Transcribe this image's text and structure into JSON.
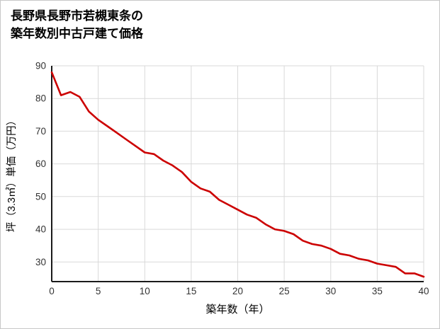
{
  "page": {
    "background": "#ffffff",
    "border_color": "#c8c8c8"
  },
  "title": {
    "line1": "長野県長野市若槻東条の",
    "line2": "築年数別中古戸建て価格"
  },
  "chart_data": {
    "type": "line",
    "title": "長野県長野市若槻東条の築年数別中古戸建て価格",
    "xlabel": "築年数（年）",
    "ylabel": "坪（3.3㎡）単価（万円）",
    "x": [
      0,
      1,
      2,
      3,
      4,
      5,
      6,
      7,
      8,
      9,
      10,
      11,
      12,
      13,
      14,
      15,
      16,
      17,
      18,
      19,
      20,
      21,
      22,
      23,
      24,
      25,
      26,
      27,
      28,
      29,
      30,
      31,
      32,
      33,
      34,
      35,
      36,
      37,
      38,
      39,
      40
    ],
    "values": [
      88,
      81,
      82,
      80.5,
      76,
      73.5,
      71.5,
      69.5,
      67.5,
      65.5,
      63.5,
      63,
      61,
      59.5,
      57.5,
      54.5,
      52.5,
      51.5,
      49,
      47.5,
      46,
      44.5,
      43.5,
      41.5,
      40,
      39.5,
      38.5,
      36.5,
      35.5,
      35,
      34,
      32.5,
      32,
      31,
      30.5,
      29.5,
      29,
      28.5,
      26.5,
      26.5,
      25.5
    ],
    "xlim": [
      0,
      40
    ],
    "ylim": [
      24,
      90
    ],
    "x_ticks": [
      0,
      5,
      10,
      15,
      20,
      25,
      30,
      35,
      40
    ],
    "y_ticks": [
      30,
      40,
      50,
      60,
      70,
      80,
      90
    ],
    "grid": true,
    "legend": "none",
    "line_color": "#cc0000",
    "grid_color": "#d9d9d9",
    "axis_color": "#1a1a1a",
    "tick_label_color": "#333333",
    "axis_label_color": "#000000"
  }
}
